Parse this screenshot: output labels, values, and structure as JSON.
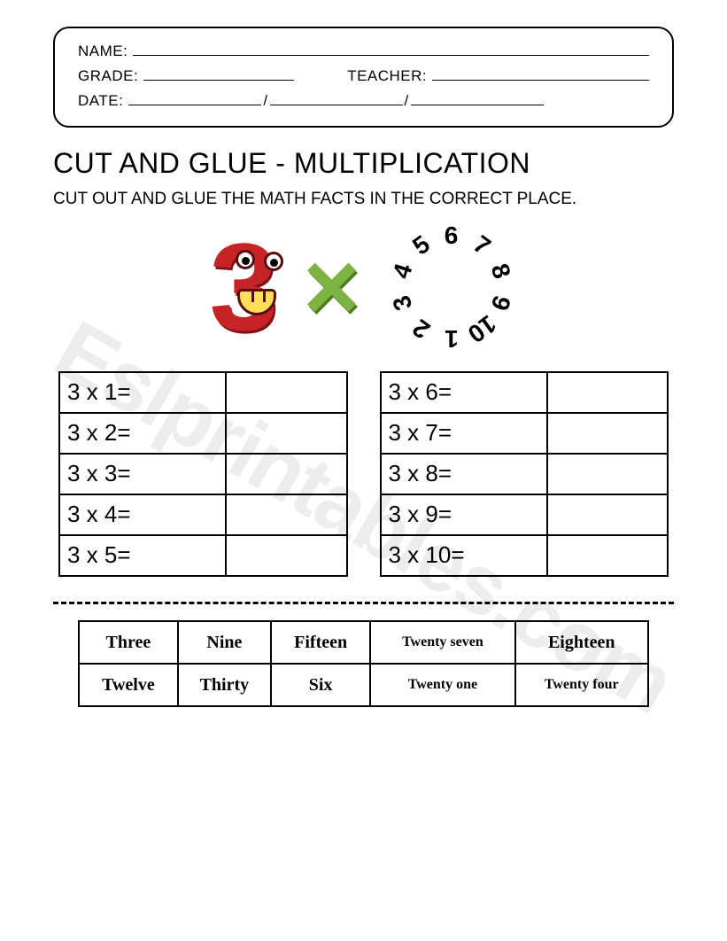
{
  "watermark": "Eslprintables.com",
  "header": {
    "name_label": "NAME:",
    "grade_label": "GRADE:",
    "teacher_label": "TEACHER:",
    "date_label": "DATE:"
  },
  "title": "CUT AND GLUE - MULTIPLICATION",
  "instructions": "CUT OUT AND GLUE THE MATH FACTS IN THE CORRECT PLACE.",
  "graphic": {
    "big_number": "3",
    "times_symbol": "×",
    "circle_numbers": [
      "1",
      "2",
      "3",
      "4",
      "5",
      "6",
      "7",
      "8",
      "9",
      "10"
    ],
    "big3_color": "#c62327",
    "x_color": "#7cb342"
  },
  "tables": {
    "left": [
      "3 x 1=",
      "3 x 2=",
      "3 x 3=",
      "3 x 4=",
      "3 x 5="
    ],
    "right": [
      "3 x 6=",
      "3 x 7=",
      "3 x 8=",
      "3 x 9=",
      "3 x 10="
    ]
  },
  "cutouts": {
    "row1": [
      "Three",
      "Nine",
      "Fifteen",
      "Twenty seven",
      "Eighteen"
    ],
    "row2": [
      "Twelve",
      "Thirty",
      "Six",
      "Twenty one",
      "Twenty four"
    ]
  }
}
